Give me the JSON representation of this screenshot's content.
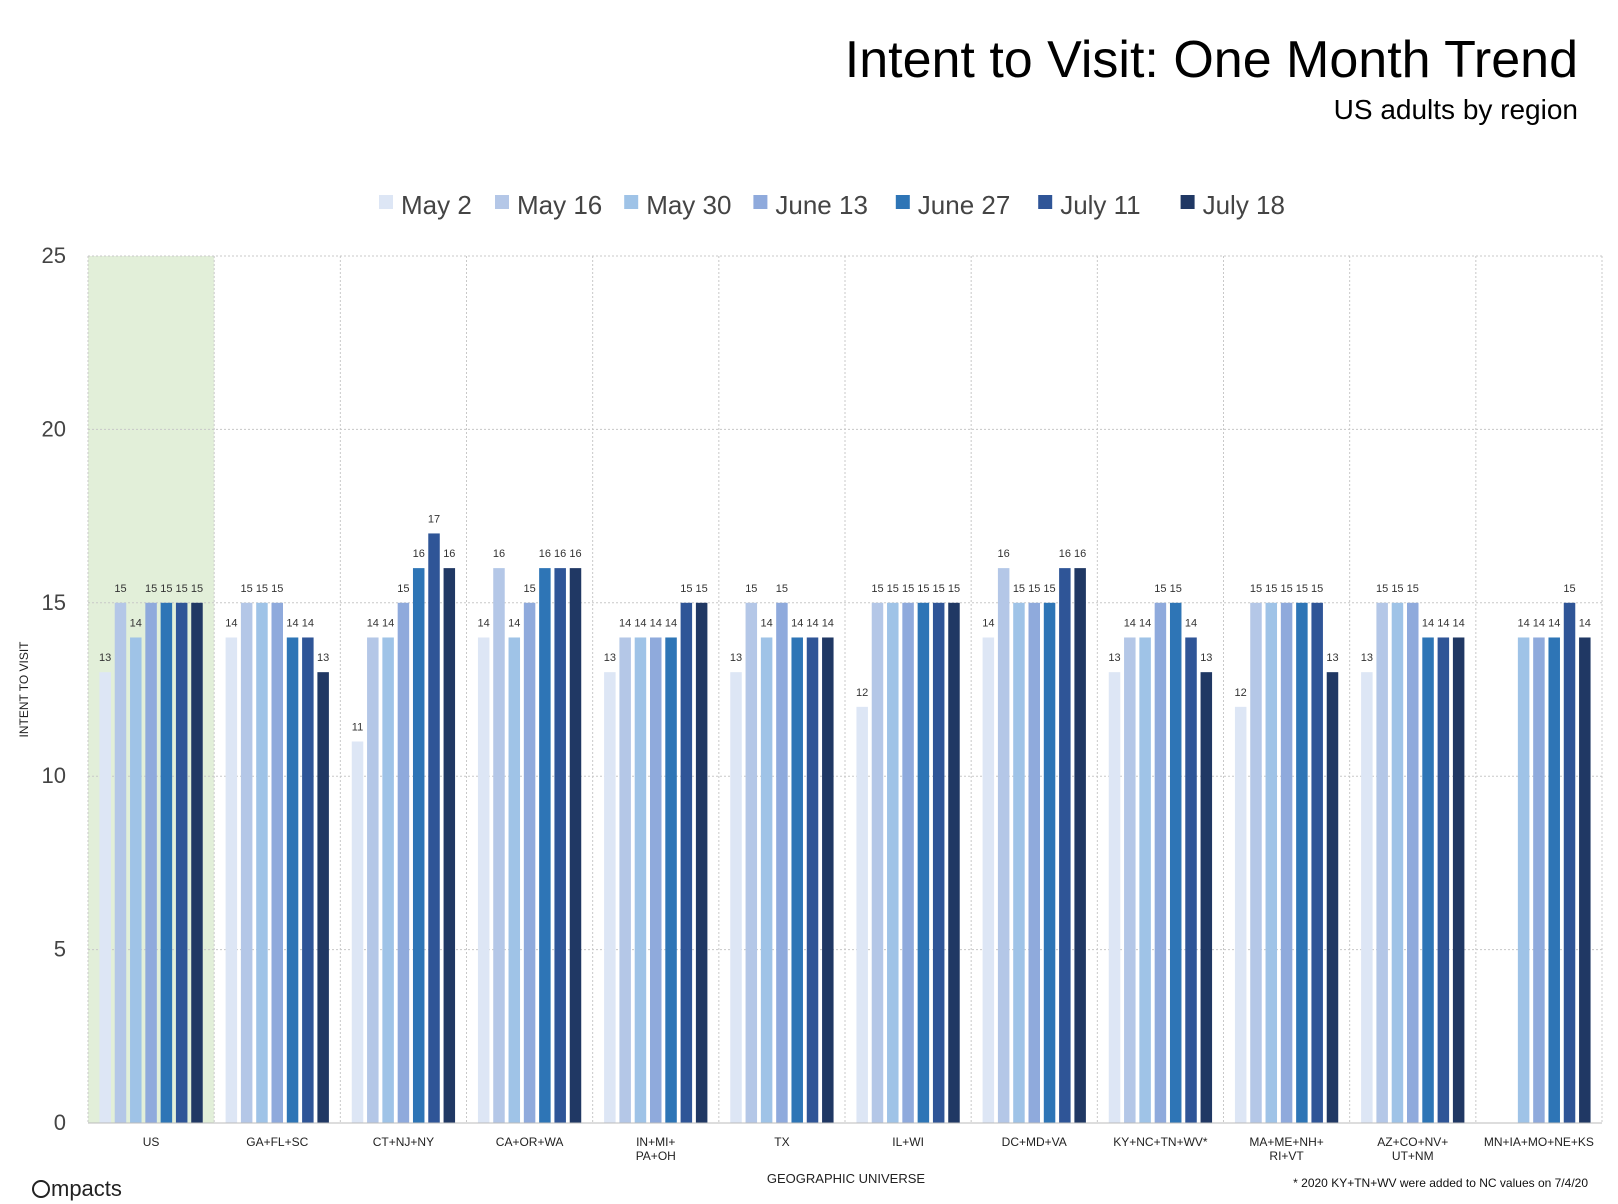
{
  "title": "Intent to Visit: One Month Trend",
  "subtitle": "US adults by region",
  "footnote": "* 2020 KY+TN+WV were added to NC values on 7/4/20",
  "logo_text": "mpacts",
  "chart_data": {
    "type": "bar",
    "title": "Intent to Visit: One Month Trend",
    "subtitle": "US adults by region",
    "xlabel": "GEOGRAPHIC UNIVERSE",
    "ylabel": "INTENT TO VISIT",
    "ylim": [
      0,
      25
    ],
    "yticks": [
      0,
      5,
      10,
      15,
      20,
      25
    ],
    "grid": true,
    "legend_position": "top",
    "highlighted_category": "US",
    "highlight_color": "#e2efd9",
    "categories": [
      [
        "US"
      ],
      [
        "GA+FL+SC"
      ],
      [
        "CT+NJ+NY"
      ],
      [
        "CA+OR+WA"
      ],
      [
        "IN+MI+",
        "PA+OH"
      ],
      [
        "TX"
      ],
      [
        "IL+WI"
      ],
      [
        "DC+MD+VA"
      ],
      [
        "KY+NC+TN+WV*"
      ],
      [
        "MA+ME+NH+",
        "RI+VT"
      ],
      [
        "AZ+CO+NV+",
        "UT+NM"
      ],
      [
        "MN+IA+MO+NE+KS"
      ]
    ],
    "series": [
      {
        "name": "May 2",
        "color": "#dde6f5",
        "values": [
          13,
          14,
          11,
          14,
          13,
          13,
          12,
          14,
          13,
          12,
          13,
          null
        ]
      },
      {
        "name": "May 16",
        "color": "#b4c7e7",
        "values": [
          15,
          15,
          14,
          16,
          14,
          15,
          15,
          16,
          14,
          15,
          15,
          null
        ]
      },
      {
        "name": "May 30",
        "color": "#9fc3e7",
        "values": [
          14,
          15,
          14,
          14,
          14,
          14,
          15,
          15,
          14,
          15,
          15,
          14
        ]
      },
      {
        "name": "June 13",
        "color": "#8faadc",
        "values": [
          15,
          15,
          15,
          15,
          14,
          15,
          15,
          15,
          15,
          15,
          15,
          14
        ]
      },
      {
        "name": "June 27",
        "color": "#2e75b6",
        "values": [
          15,
          14,
          16,
          16,
          14,
          14,
          15,
          15,
          15,
          15,
          14,
          14
        ]
      },
      {
        "name": "July 11",
        "color": "#2f5597",
        "values": [
          15,
          14,
          17,
          16,
          15,
          14,
          15,
          16,
          14,
          15,
          14,
          15
        ]
      },
      {
        "name": "July 18",
        "color": "#203864",
        "values": [
          15,
          13,
          16,
          16,
          15,
          14,
          15,
          16,
          13,
          13,
          14,
          14
        ]
      }
    ]
  }
}
